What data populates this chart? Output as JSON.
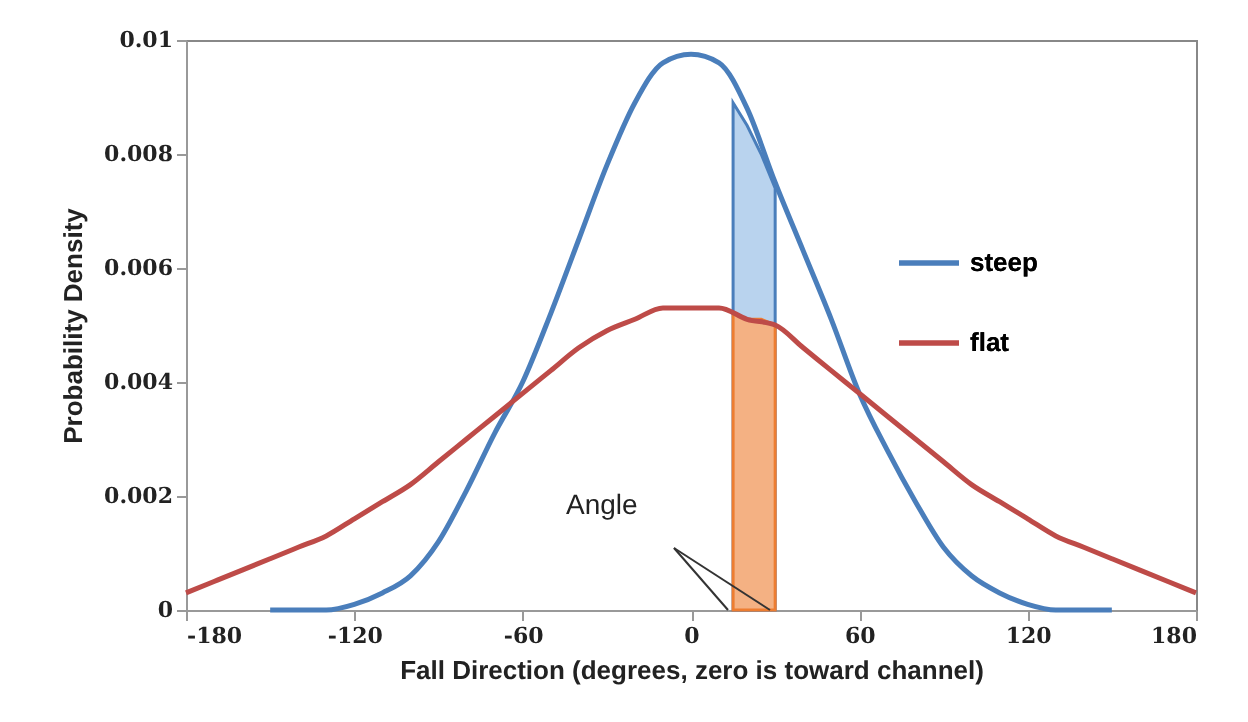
{
  "chart_data": {
    "type": "line",
    "xlabel": "Fall Direction (degrees, zero is toward channel)",
    "ylabel": "Probability Density",
    "annotations": [
      "Angle"
    ],
    "xlim": [
      -180,
      180
    ],
    "xticks": [
      -180,
      -120,
      -60,
      0,
      60,
      120,
      180
    ],
    "ylim": [
      0,
      0.01
    ],
    "yticks": [
      0,
      0.002,
      0.004,
      0.006,
      0.008,
      0.01
    ],
    "grid": false,
    "legend": "right",
    "marker": "none",
    "line_style": "solid",
    "series": [
      {
        "name": "steep",
        "color": "#4a7ebb",
        "x": [
          -150,
          -140,
          -130,
          -120,
          -110,
          -100,
          -90,
          -80,
          -70,
          -60,
          -50,
          -40,
          -30,
          -20,
          -10,
          0,
          10,
          20,
          30,
          40,
          50,
          60,
          70,
          80,
          90,
          100,
          110,
          120,
          130,
          140,
          150
        ],
        "values": [
          0,
          0,
          0,
          0.0001,
          0.0003,
          0.0006,
          0.0012,
          0.0021,
          0.0031,
          0.004,
          0.0052,
          0.0065,
          0.0078,
          0.0089,
          0.0096,
          0.00975,
          0.0096,
          0.0088,
          0.0075,
          0.0063,
          0.0051,
          0.0038,
          0.0028,
          0.0019,
          0.0011,
          0.0006,
          0.0003,
          0.0001,
          0,
          0,
          0
        ]
      },
      {
        "name": "flat",
        "color": "#be4b48",
        "x": [
          -180,
          -170,
          -160,
          -150,
          -140,
          -130,
          -120,
          -110,
          -100,
          -90,
          -80,
          -70,
          -60,
          -50,
          -40,
          -30,
          -20,
          -10,
          0,
          10,
          20,
          30,
          40,
          50,
          60,
          70,
          80,
          90,
          100,
          110,
          120,
          130,
          140,
          150,
          160,
          170,
          180
        ],
        "values": [
          0.0003,
          0.0005,
          0.0007,
          0.0009,
          0.0011,
          0.0013,
          0.0016,
          0.0019,
          0.0022,
          0.0026,
          0.003,
          0.0034,
          0.0038,
          0.0042,
          0.0046,
          0.0049,
          0.0051,
          0.0053,
          0.0053,
          0.0053,
          0.0051,
          0.005,
          0.0046,
          0.0042,
          0.0038,
          0.0034,
          0.003,
          0.0026,
          0.0022,
          0.0019,
          0.0016,
          0.0013,
          0.0011,
          0.0009,
          0.0007,
          0.0005,
          0.0003
        ]
      },
      {
        "type": "area",
        "color": "#b9d3ee",
        "x": [
          15,
          20,
          25,
          30
        ],
        "values": [
          0.0089,
          0.0085,
          0.008,
          0.0074
        ]
      },
      {
        "type": "area",
        "color": "#f4b183",
        "x": [
          15,
          20,
          25,
          30
        ],
        "values": [
          0.0052,
          0.0051,
          0.0051,
          0.005
        ]
      }
    ]
  }
}
